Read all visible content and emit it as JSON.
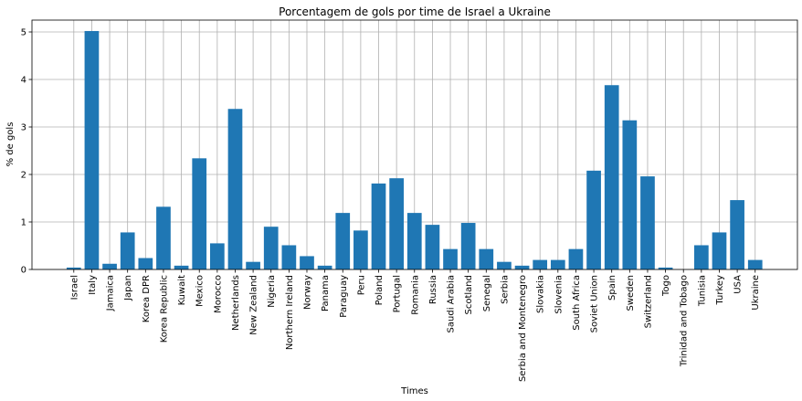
{
  "chart_data": {
    "type": "bar",
    "title": "Porcentagem de gols por time de Israel a Ukraine",
    "xlabel": "Times",
    "ylabel": "% de gols",
    "ylim": [
      0,
      5.25
    ],
    "yticks": [
      0,
      1,
      2,
      3,
      4,
      5
    ],
    "grid": true,
    "bar_color": "#1f77b4",
    "categories": [
      "Israel",
      "Italy",
      "Jamaica",
      "Japan",
      "Korea DPR",
      "Korea Republic",
      "Kuwait",
      "Mexico",
      "Morocco",
      "Netherlands",
      "New Zealand",
      "Nigeria",
      "Northern Ireland",
      "Norway",
      "Panama",
      "Paraguay",
      "Peru",
      "Poland",
      "Portugal",
      "Romania",
      "Russia",
      "Saudi Arabia",
      "Scotland",
      "Senegal",
      "Serbia",
      "Serbia and Montenegro",
      "Slovakia",
      "Slovenia",
      "South Africa",
      "Soviet Union",
      "Spain",
      "Sweden",
      "Switzerland",
      "Togo",
      "Trinidad and Tobago",
      "Tunisia",
      "Turkey",
      "USA",
      "Ukraine"
    ],
    "values": [
      0.04,
      5.02,
      0.12,
      0.78,
      0.24,
      1.32,
      0.08,
      2.34,
      0.55,
      3.38,
      0.16,
      0.9,
      0.51,
      0.28,
      0.08,
      1.19,
      0.82,
      1.81,
      1.92,
      1.19,
      0.94,
      0.43,
      0.98,
      0.43,
      0.16,
      0.08,
      0.2,
      0.2,
      0.43,
      2.08,
      3.88,
      3.14,
      1.96,
      0.04,
      0.0,
      0.51,
      0.78,
      1.46,
      0.2
    ]
  }
}
